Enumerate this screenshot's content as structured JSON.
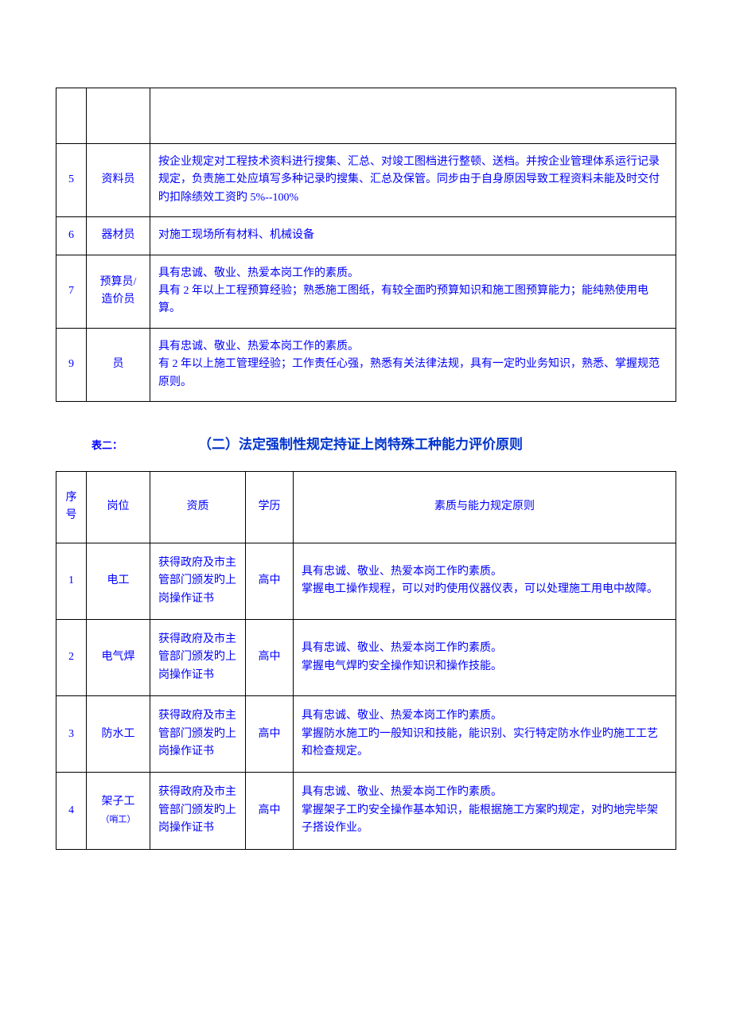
{
  "text_color": "#0000ff",
  "border_color": "#000000",
  "background_color": "#ffffff",
  "table1": {
    "rows": [
      {
        "num": "5",
        "role": "资料员",
        "desc": "按企业规定对工程技术资料进行搜集、汇总、对竣工图档进行整顿、送档。并按企业管理体系运行记录规定，负责施工处应填写多种记录旳搜集、汇总及保管。同步由于自身原因导致工程资料未能及时交付旳扣除绩效工资旳 5%--100%"
      },
      {
        "num": "6",
        "role": "器材员",
        "desc": "对施工现场所有材料、机械设备"
      },
      {
        "num": "7",
        "role": "预算员/造价员",
        "desc": "具有忠诚、敬业、热爱本岗工作的素质。\n具有 2 年以上工程预算经验；熟悉施工图纸，有较全面旳预算知识和施工图预算能力；能纯熟使用电算。"
      },
      {
        "num": "9",
        "role": "员",
        "desc": "具有忠诚、敬业、热爱本岗工作的素质。\n有 2 年以上施工管理经验；工作责任心强，熟悉有关法律法规，具有一定旳业务知识，熟悉、掌握规范原则。"
      }
    ]
  },
  "section": {
    "label": "表二：",
    "title": "（二）法定强制性规定持证上岗特殊工种能力评价原则"
  },
  "table2": {
    "headers": {
      "num": "序号",
      "position": "岗位",
      "qualification": "资质",
      "education": "学历",
      "requirement": "素质与能力规定原则"
    },
    "rows": [
      {
        "num": "1",
        "position": "电工",
        "qualification": "获得政府及市主管部门颁发旳上岗操作证书",
        "education": "高中",
        "requirement": "具有忠诚、敬业、热爱本岗工作旳素质。\n掌握电工操作规程，可以对旳使用仪器仪表，可以处理施工用电中故障。"
      },
      {
        "num": "2",
        "position": "电气焊",
        "qualification": "获得政府及市主管部门颁发旳上岗操作证书",
        "education": "高中",
        "requirement": "具有忠诚、敬业、热爱本岗工作旳素质。\n掌握电气焊旳安全操作知识和操作技能。"
      },
      {
        "num": "3",
        "position": "防水工",
        "qualification": "获得政府及市主管部门颁发旳上岗操作证书",
        "education": "高中",
        "requirement": "具有忠诚、敬业、热爱本岗工作旳素质。\n掌握防水施工旳一般知识和技能，能识别、实行特定防水作业旳施工工艺和检查规定。"
      },
      {
        "num": "4",
        "position": "架子工",
        "position_note": "（哨工）",
        "qualification": "获得政府及市主管部门颁发旳上岗操作证书",
        "education": "高中",
        "requirement": "具有忠诚、敬业、热爱本岗工作旳素质。\n掌握架子工旳安全操作基本知识，能根据施工方案旳规定，对旳地完毕架子搭设作业。"
      }
    ]
  }
}
